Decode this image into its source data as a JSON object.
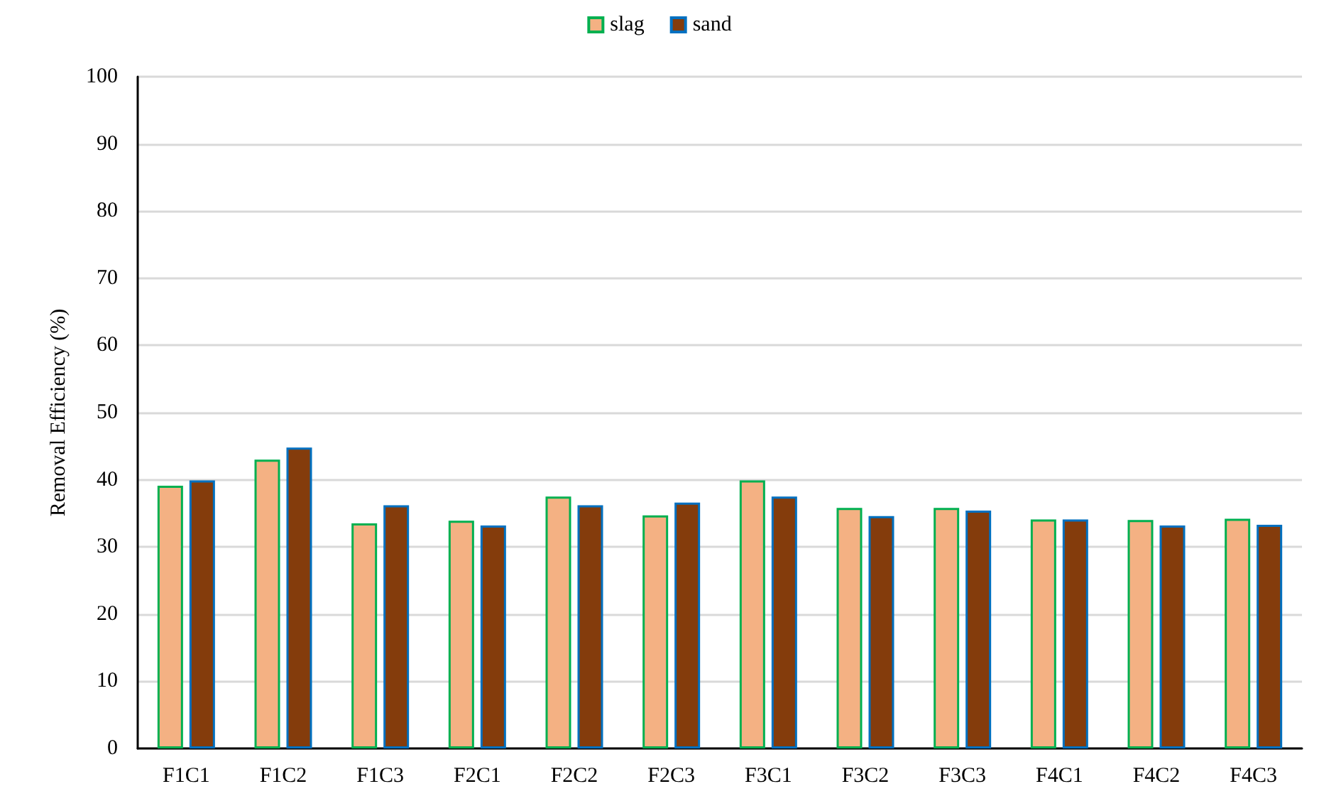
{
  "chart_data": {
    "type": "bar",
    "ylabel": "Removal Efficiency (%)",
    "categories": [
      "F1C1",
      "F1C2",
      "F1C3",
      "F2C1",
      "F2C2",
      "F2C3",
      "F3C1",
      "F3C2",
      "F3C3",
      "F4C1",
      "F4C2",
      "F4C3"
    ],
    "series": [
      {
        "name": "slag",
        "color": "#f4b183",
        "values": [
          39.1,
          43.0,
          33.5,
          33.9,
          37.5,
          34.7,
          39.9,
          35.8,
          35.8,
          34.1,
          34.0,
          34.2
        ]
      },
      {
        "name": "sand",
        "color": "#843c0c",
        "values": [
          39.9,
          44.8,
          36.2,
          33.2,
          36.2,
          36.6,
          37.5,
          34.6,
          35.4,
          34.1,
          33.2,
          33.3
        ]
      }
    ],
    "ylim": [
      0,
      100
    ],
    "yticks": [
      0,
      10,
      20,
      30,
      40,
      50,
      60,
      70,
      80,
      90,
      100
    ],
    "grid": "y",
    "legend": "top"
  }
}
